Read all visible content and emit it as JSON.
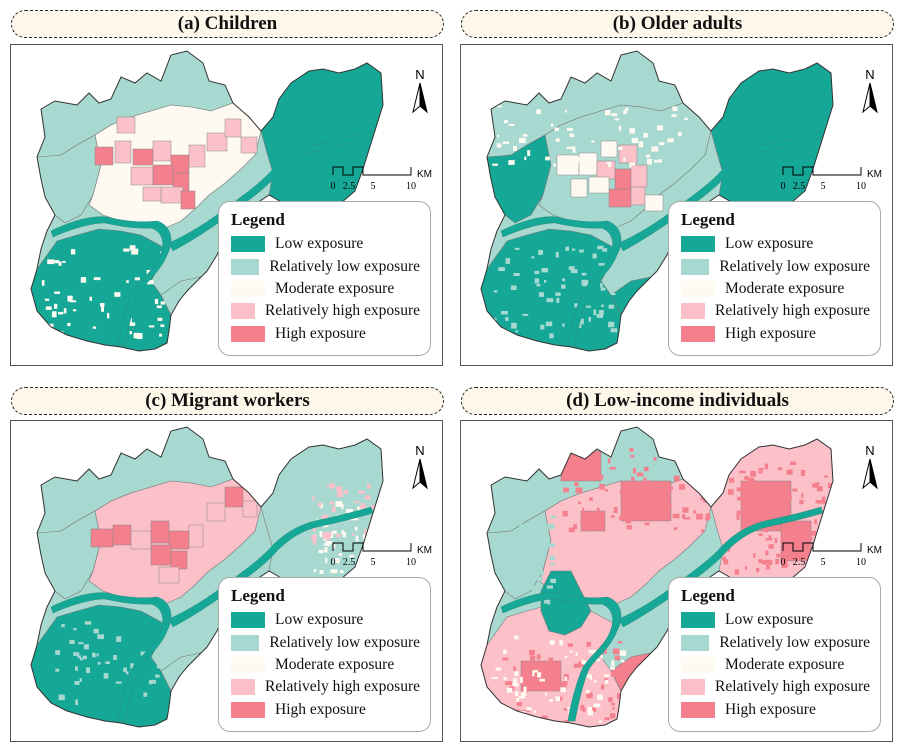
{
  "panels": [
    {
      "title": "(a) Children",
      "scheme": "children"
    },
    {
      "title": "(b) Older adults",
      "scheme": "older"
    },
    {
      "title": "(c) Migrant workers",
      "scheme": "migrant"
    },
    {
      "title": "(d) Low-income individuals",
      "scheme": "lowincome"
    }
  ],
  "north": "N",
  "scale": {
    "ticks": [
      "0",
      "2.5",
      "5",
      "10"
    ],
    "unit": "KM"
  },
  "legend": {
    "title": "Legend",
    "items": [
      {
        "label": "Low exposure",
        "color": "#15a896"
      },
      {
        "label": "Relatively low exposure",
        "color": "#a7d9d1"
      },
      {
        "label": "Moderate exposure",
        "color": "#fefaf1"
      },
      {
        "label": "Relatively high exposure",
        "color": "#fbc0c8"
      },
      {
        "label": "High exposure",
        "color": "#f4808e"
      }
    ]
  }
}
